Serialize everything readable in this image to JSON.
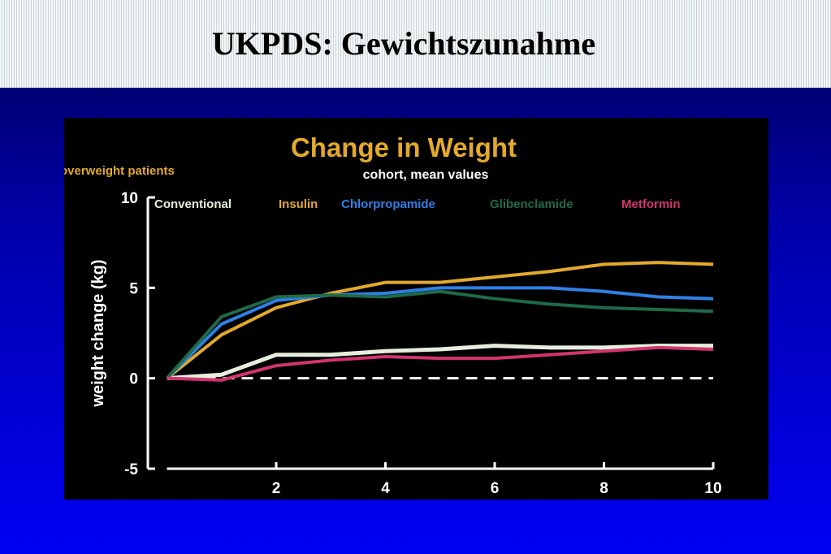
{
  "header": {
    "title": "UKPDS: Gewichtszunahme"
  },
  "chart_data": {
    "type": "line",
    "title": "Change in Weight",
    "subtitle": "cohort, mean values",
    "annotation": "overweight patients",
    "y_label": "weight change (kg)",
    "x": [
      0,
      1,
      2,
      3,
      4,
      5,
      6,
      7,
      8,
      9,
      10
    ],
    "xlim": [
      0,
      10
    ],
    "xticks": [
      2,
      4,
      6,
      8,
      10
    ],
    "ylim": [
      -5,
      10
    ],
    "yticks": [
      -5,
      0,
      5,
      10
    ],
    "series": [
      {
        "name": "Conventional",
        "color": "#e6eedc",
        "values": [
          0,
          0.2,
          1.3,
          1.3,
          1.5,
          1.6,
          1.8,
          1.7,
          1.7,
          1.8,
          1.8
        ]
      },
      {
        "name": "Insulin",
        "color": "#e2a92c",
        "values": [
          0,
          2.4,
          3.9,
          4.7,
          5.3,
          5.3,
          5.6,
          5.9,
          6.3,
          6.4,
          6.3
        ]
      },
      {
        "name": "Chlorpropamide",
        "color": "#2f80e6",
        "values": [
          0,
          3.0,
          4.3,
          4.6,
          4.7,
          5.0,
          5.0,
          5.0,
          4.8,
          4.5,
          4.4
        ]
      },
      {
        "name": "Glibenclamide",
        "color": "#1f6a48",
        "values": [
          0,
          3.4,
          4.5,
          4.6,
          4.5,
          4.8,
          4.4,
          4.1,
          3.9,
          3.8,
          3.7
        ]
      },
      {
        "name": "Metformin",
        "color": "#d2346f",
        "values": [
          0,
          -0.1,
          0.7,
          1.0,
          1.2,
          1.1,
          1.1,
          1.3,
          1.5,
          1.7,
          1.6
        ]
      }
    ]
  }
}
